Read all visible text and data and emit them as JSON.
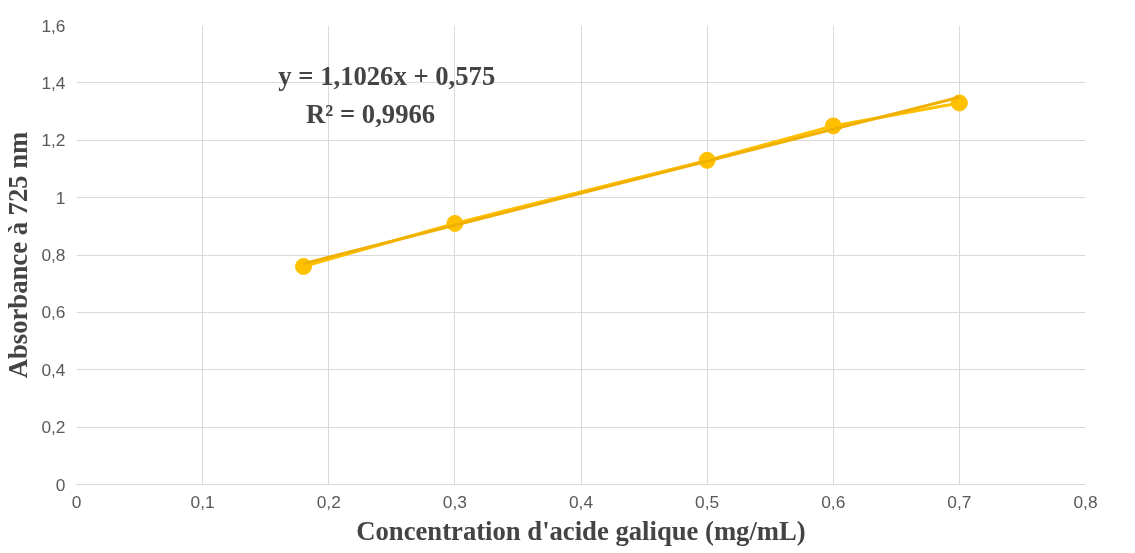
{
  "chart_data": {
    "type": "line",
    "xlabel": "Concentration d'acide galique (mg/mL)",
    "ylabel": "Absorbance à 725 nm",
    "annotations": [
      "y = 1,1026x + 0,575",
      "R² = 0,9966"
    ],
    "series": [
      {
        "color": "#ffc000",
        "marker": "circle",
        "x": [
          0.18,
          0.3,
          0.5,
          0.6,
          0.7
        ],
        "values": [
          0.76,
          0.91,
          1.13,
          1.25,
          1.33
        ]
      },
      {
        "color": "#f0b000",
        "marker": "none",
        "x": [
          0.18,
          0.7
        ],
        "values": [
          0.77,
          1.35
        ]
      }
    ],
    "xlim": [
      0,
      0.8
    ],
    "ylim": [
      0,
      1.6
    ],
    "xticks": [
      0,
      {
        "value": 0.1,
        "label": "0,1"
      },
      {
        "value": 0.2,
        "label": "0,2"
      },
      {
        "value": 0.3,
        "label": "0,3"
      },
      {
        "value": 0.4,
        "label": "0,4"
      },
      {
        "value": 0.5,
        "label": "0,5"
      },
      {
        "value": 0.6,
        "label": "0,6"
      },
      {
        "value": 0.7,
        "label": "0,7"
      },
      {
        "value": 0.8,
        "label": "0,8"
      }
    ],
    "yticks": [
      0,
      {
        "value": 0.2,
        "label": "0,2"
      },
      {
        "value": 0.4,
        "label": "0,4"
      },
      {
        "value": 0.6,
        "label": "0,6"
      },
      {
        "value": 0.8,
        "label": "0,8"
      },
      1,
      {
        "value": 1.2,
        "label": "1,2"
      },
      {
        "value": 1.4,
        "label": "1,4"
      },
      {
        "value": 1.6,
        "label": "1,6"
      }
    ],
    "grid": true
  }
}
